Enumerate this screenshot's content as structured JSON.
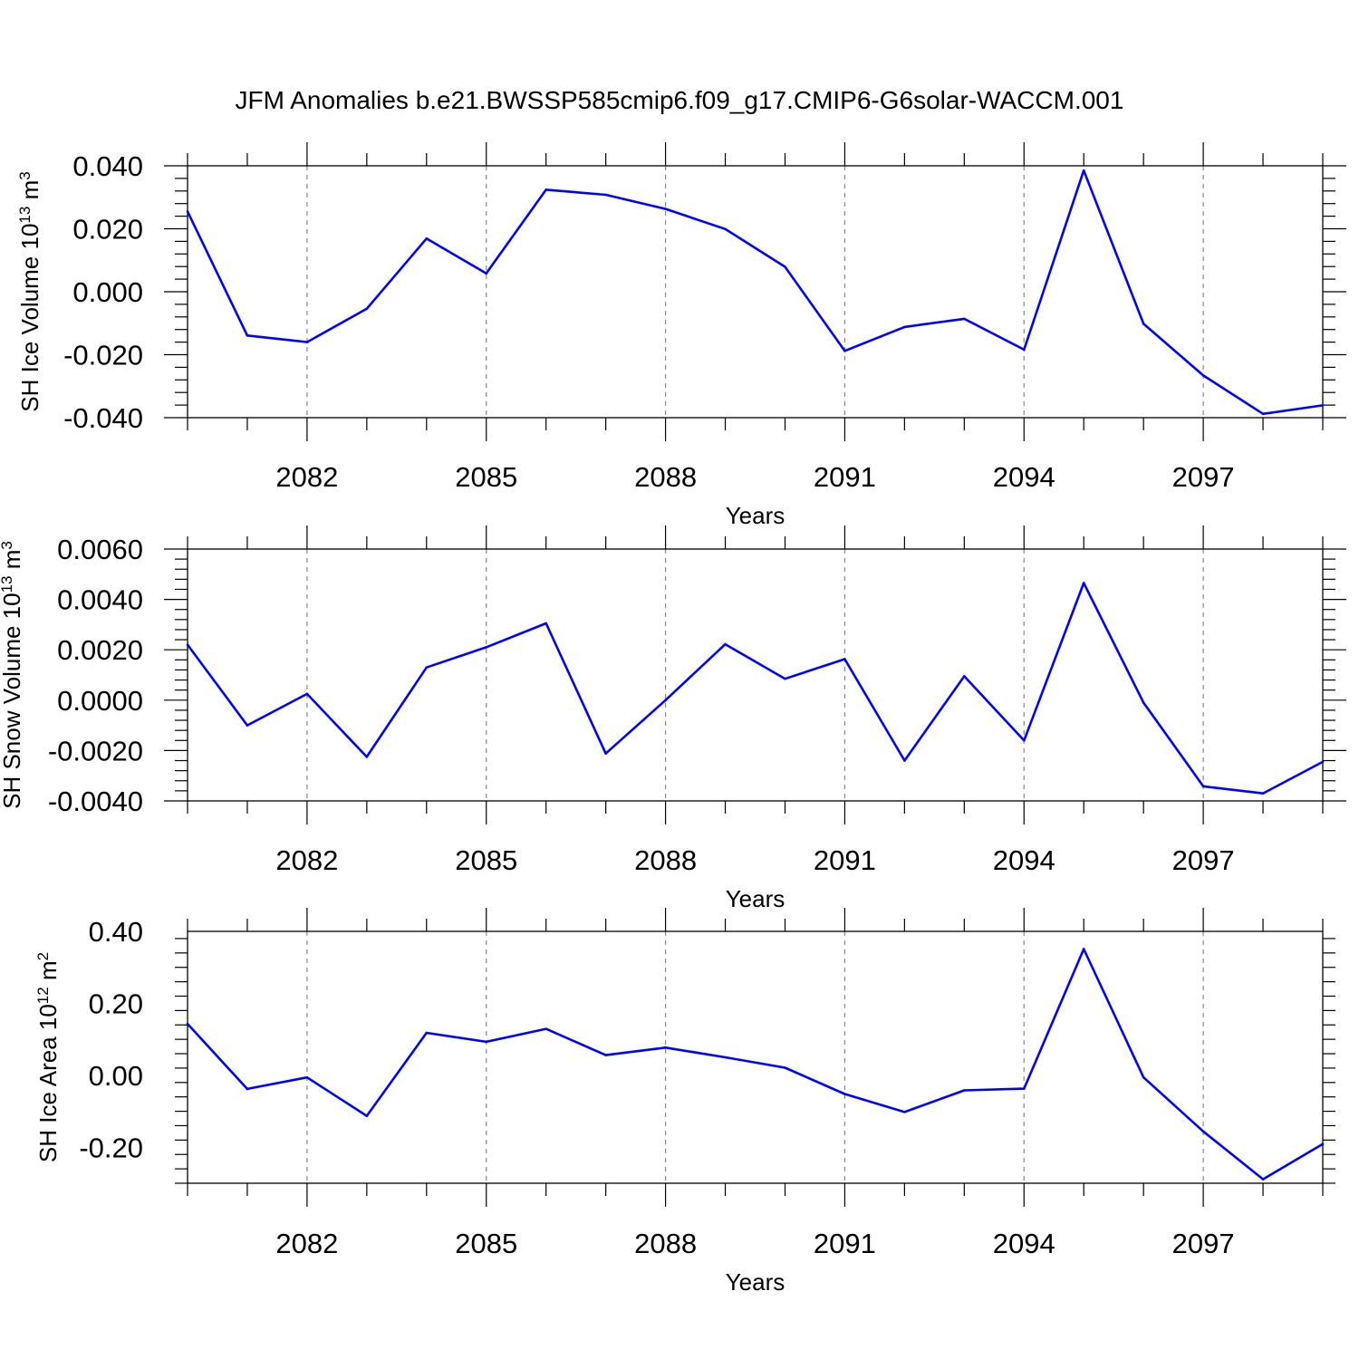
{
  "title": "JFM Anomalies b.e21.BWSSP585cmip6.f09_g17.CMIP6-G6solar-WACCM.001",
  "chart_data": [
    {
      "type": "line",
      "xlabel": "Years",
      "ylabel": {
        "text": "SH Ice Volume 10",
        "sup": "13",
        "unit": " m",
        "unit_sup": "3"
      },
      "xlim": [
        2080,
        2099
      ],
      "ylim": [
        -0.04,
        0.04
      ],
      "x_ticks": [
        "2082",
        "2085",
        "2088",
        "2091",
        "2094",
        "2097"
      ],
      "y_ticks": [
        "0.040",
        "0.020",
        "0.000",
        "-0.020",
        "-0.040"
      ],
      "color": "#0000ff",
      "grid": "dashed vertical at labeled years",
      "x": [
        2080,
        2081,
        2082,
        2083,
        2084,
        2085,
        2086,
        2087,
        2088,
        2089,
        2090,
        2091,
        2092,
        2093,
        2094,
        2095,
        2096,
        2097,
        2098,
        2099
      ],
      "values": [
        0.0255,
        -0.0139,
        -0.016,
        -0.0054,
        0.0169,
        0.0058,
        0.0324,
        0.0308,
        0.0263,
        0.0199,
        0.0079,
        -0.0188,
        -0.0112,
        -0.0086,
        -0.0184,
        0.0385,
        -0.0102,
        -0.0266,
        -0.0388,
        -0.0361
      ]
    },
    {
      "type": "line",
      "xlabel": "Years",
      "ylabel": {
        "text": "SH Snow Volume 10",
        "sup": "13",
        "unit": " m",
        "unit_sup": "3"
      },
      "xlim": [
        2080,
        2099
      ],
      "ylim": [
        -0.004,
        0.006
      ],
      "x_ticks": [
        "2082",
        "2085",
        "2088",
        "2091",
        "2094",
        "2097"
      ],
      "y_ticks": [
        "0.0060",
        "0.0040",
        "0.0020",
        "0.0000",
        "-0.0020",
        "-0.0040"
      ],
      "color": "#0000ff",
      "grid": "dashed vertical at labeled years",
      "x": [
        2080,
        2081,
        2082,
        2083,
        2084,
        2085,
        2086,
        2087,
        2088,
        2089,
        2090,
        2091,
        2092,
        2093,
        2094,
        2095,
        2096,
        2097,
        2098,
        2099
      ],
      "values": [
        0.0022,
        -0.001,
        0.00025,
        -0.00225,
        0.0013,
        0.0021,
        0.00305,
        -0.00212,
        0.0,
        0.00222,
        0.00085,
        0.00163,
        -0.0024,
        0.00095,
        -0.0016,
        0.00465,
        -0.0001,
        -0.00342,
        -0.0037,
        -0.00245
      ]
    },
    {
      "type": "line",
      "xlabel": "Years",
      "ylabel": {
        "text": "SH Ice Area 10",
        "sup": "12",
        "unit": " m",
        "unit_sup": "2"
      },
      "xlim": [
        2080,
        2099
      ],
      "ylim": [
        -0.3,
        0.4
      ],
      "x_ticks": [
        "2082",
        "2085",
        "2088",
        "2091",
        "2094",
        "2097"
      ],
      "y_ticks": [
        "0.40",
        "0.20",
        "0.00",
        "-0.20"
      ],
      "color": "#0000ff",
      "grid": "dashed vertical at labeled years",
      "x": [
        2080,
        2081,
        2082,
        2083,
        2084,
        2085,
        2086,
        2087,
        2088,
        2089,
        2090,
        2091,
        2092,
        2093,
        2094,
        2095,
        2096,
        2097,
        2098,
        2099
      ],
      "values": [
        0.143,
        -0.038,
        -0.006,
        -0.113,
        0.118,
        0.093,
        0.129,
        0.056,
        0.077,
        0.05,
        0.021,
        -0.052,
        -0.102,
        -0.042,
        -0.037,
        0.351,
        -0.006,
        -0.156,
        -0.289,
        -0.191
      ]
    }
  ]
}
